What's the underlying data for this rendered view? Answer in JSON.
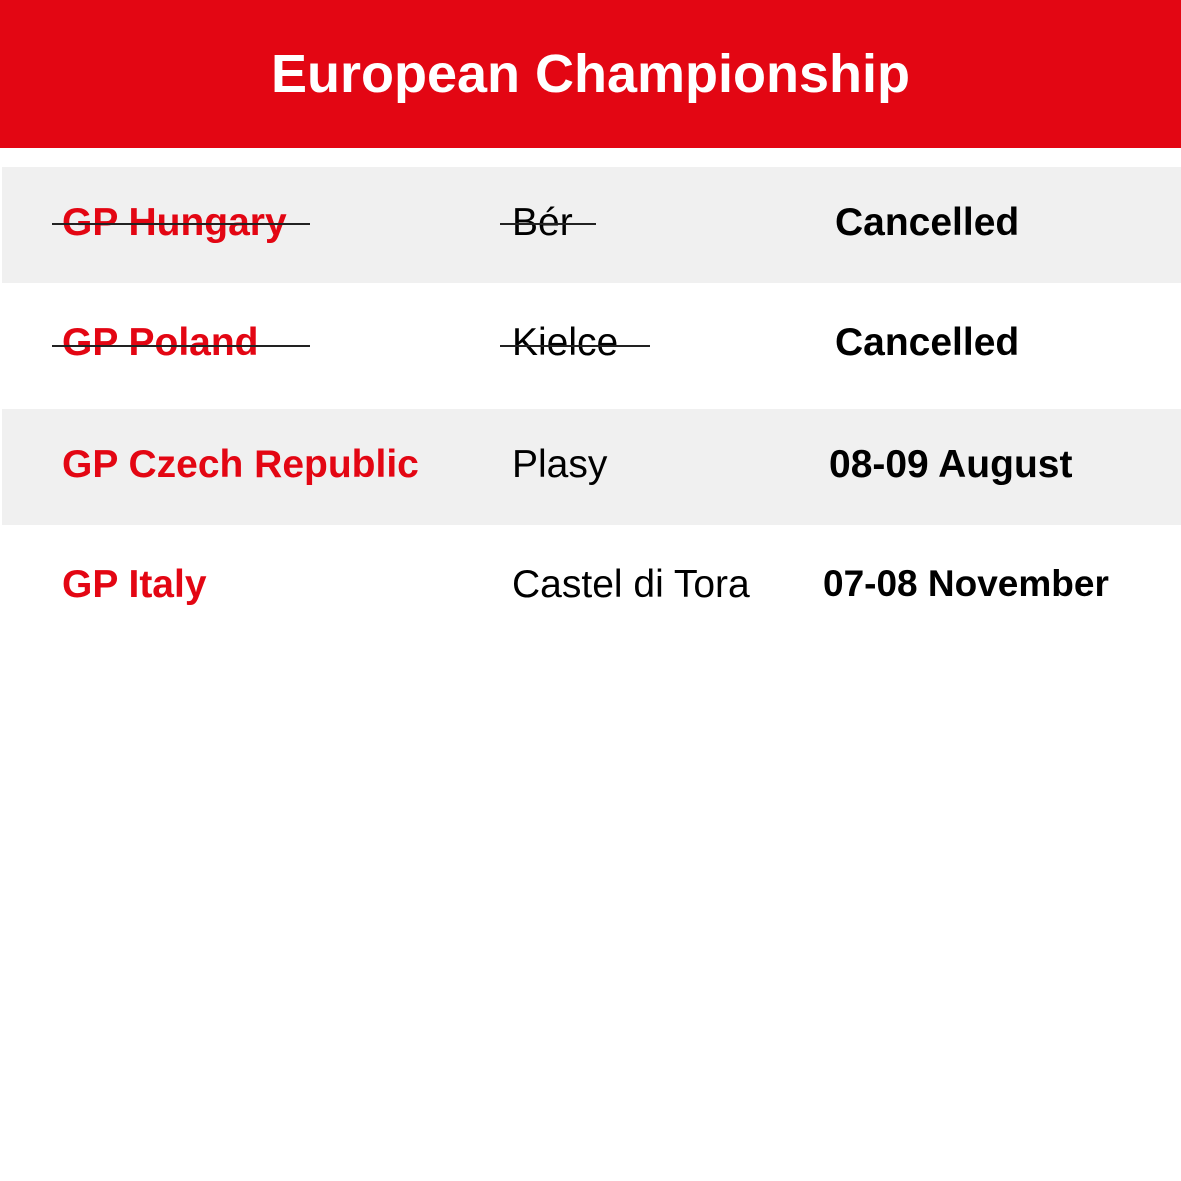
{
  "header": {
    "title": "European Championship"
  },
  "colors": {
    "accent": "#e30613",
    "row_alt": "#f0f0f0"
  },
  "events": [
    {
      "name": "GP Hungary",
      "location": "Bér",
      "date": "Cancelled",
      "cancelled": true
    },
    {
      "name": "GP Poland",
      "location": "Kielce",
      "date": "Cancelled",
      "cancelled": true
    },
    {
      "name": "GP Czech Republic",
      "location": "Plasy",
      "date": "08-09 August",
      "cancelled": false
    },
    {
      "name": "GP Italy",
      "location": "Castel di Tora",
      "date": "07-08 November",
      "cancelled": false
    }
  ]
}
